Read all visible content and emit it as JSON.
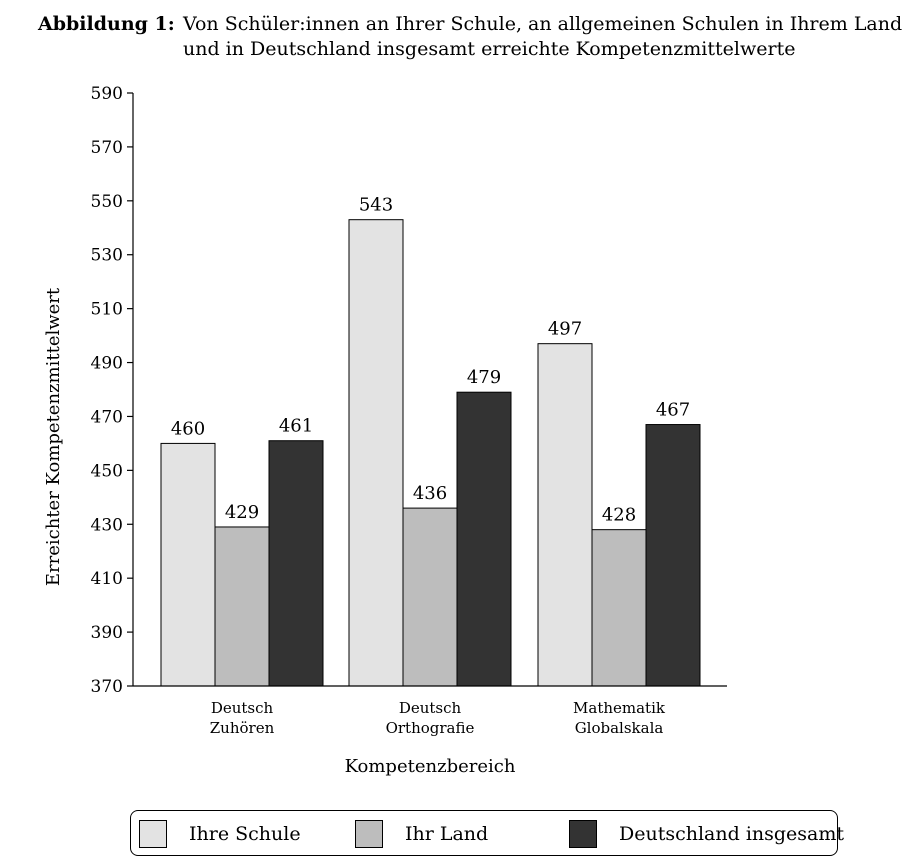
{
  "caption": {
    "label": "Abbildung 1:",
    "text": "Von Schüler:innen an Ihrer Schule, an allgemeinen Schulen in Ihrem Land und in Deutschland insgesamt erreichte Kompetenzmittelwerte"
  },
  "chart_data": {
    "type": "bar",
    "categories": [
      [
        "Deutsch",
        "Zuhören"
      ],
      [
        "Deutsch",
        "Orthografie"
      ],
      [
        "Mathematik",
        "Globalskala"
      ]
    ],
    "series": [
      {
        "name": "Ihre Schule",
        "values": [
          460,
          543,
          497
        ],
        "color": "#e3e3e3"
      },
      {
        "name": "Ihr Land",
        "values": [
          429,
          436,
          428
        ],
        "color": "#bdbdbd"
      },
      {
        "name": "Deutschland insgesamt",
        "values": [
          461,
          479,
          467
        ],
        "color": "#333333"
      }
    ],
    "xlabel": "Kompetenzbereich",
    "ylabel": "Erreichter Kompetenzmittelwert",
    "ylim": [
      370,
      590
    ],
    "yticks": [
      370,
      390,
      410,
      430,
      450,
      470,
      490,
      510,
      530,
      550,
      570,
      590
    ],
    "grid": false,
    "legend_position": "bottom"
  }
}
